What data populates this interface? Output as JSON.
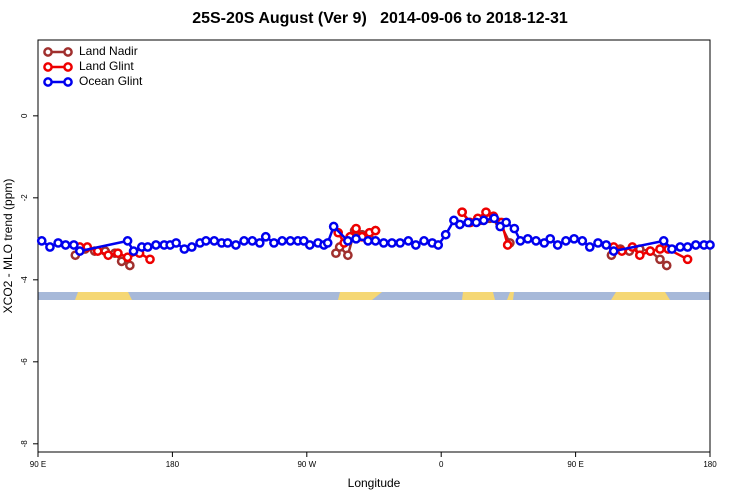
{
  "chart_data": {
    "type": "line",
    "title": "25S-20S August (Ver 9)   2014-09-06 to 2018-12-31",
    "xlabel": "Longitude",
    "ylabel": "XCO2 - MLO trend (ppm)",
    "xlim": [
      90,
      540
    ],
    "ylim": [
      -8.2,
      1.85
    ],
    "xticks": [
      {
        "value": 90,
        "label": "90 E"
      },
      {
        "value": 180,
        "label": "180"
      },
      {
        "value": 270,
        "label": "90 W"
      },
      {
        "value": 360,
        "label": "0"
      },
      {
        "value": 450,
        "label": "90 E"
      },
      {
        "value": 540,
        "label": "180"
      }
    ],
    "yticks": [
      0,
      -2,
      -4,
      -6,
      -8
    ],
    "legend": "top-left",
    "series": [
      {
        "name": "Land Nadir",
        "color": "#a0302e",
        "x": [
          115,
          121.5,
          128,
          135,
          141.5,
          146,
          151.5,
          220,
          289.5,
          292,
          297.5,
          302,
          307,
          312,
          316,
          345,
          374,
          379,
          386,
          392.5,
          399,
          406,
          440,
          474,
          480,
          486,
          493,
          500,
          506.5,
          511
        ],
        "values": [
          -3.4,
          -3.25,
          -3.3,
          -3.3,
          -3.35,
          -3.55,
          -3.65,
          null,
          -3.35,
          -3.2,
          -3.4,
          -2.8,
          -2.9,
          -3.0,
          -2.8,
          null,
          -2.35,
          -2.6,
          -2.55,
          -2.5,
          -2.6,
          -3.1,
          null,
          -3.4,
          -3.25,
          -3.3,
          -3.25,
          -3.3,
          -3.5,
          -3.65
        ]
      },
      {
        "name": "Land Glint",
        "color": "#ee0000",
        "x": [
          118,
          123,
          130,
          137,
          143.5,
          150,
          158,
          165,
          220,
          291,
          295,
          299,
          303,
          307,
          312,
          316,
          345,
          374,
          379.5,
          384.5,
          390,
          395,
          400.5,
          404.5,
          440,
          475.5,
          481,
          488,
          493,
          500,
          506.5,
          512,
          525
        ],
        "values": [
          -3.2,
          -3.2,
          -3.3,
          -3.4,
          -3.35,
          -3.45,
          -3.35,
          -3.5,
          null,
          -2.85,
          -3.1,
          -2.95,
          -2.75,
          -2.95,
          -2.85,
          -2.8,
          null,
          -2.35,
          -2.6,
          -2.5,
          -2.35,
          -2.45,
          -2.6,
          -3.15,
          null,
          -3.2,
          -3.3,
          -3.2,
          -3.4,
          -3.3,
          -3.25,
          -3.25,
          -3.5
        ]
      },
      {
        "name": "Ocean Glint",
        "color": "#0000ee",
        "x": [
          92.5,
          98,
          103.5,
          108.5,
          114,
          118,
          150,
          154,
          159.5,
          163.5,
          169,
          174.5,
          178.5,
          182.5,
          188,
          193,
          198.5,
          202.5,
          208,
          213,
          217,
          222.5,
          228,
          233.5,
          238.5,
          242.5,
          248,
          253.5,
          259,
          264,
          268,
          272,
          277.5,
          281.5,
          284,
          288,
          297.5,
          303,
          311,
          316,
          321.5,
          327,
          332.5,
          338,
          343,
          348.5,
          354,
          358,
          363,
          368.5,
          372.5,
          378,
          383.5,
          388.5,
          395.5,
          399.5,
          403.5,
          409,
          413,
          418,
          423.5,
          429,
          433,
          438,
          443.5,
          449,
          454.5,
          459.5,
          465,
          470.5,
          475.5,
          509,
          514.5,
          520,
          525,
          530.5,
          536,
          540
        ],
        "values": [
          -3.05,
          -3.2,
          -3.1,
          -3.15,
          -3.15,
          -3.3,
          -3.05,
          -3.3,
          -3.2,
          -3.2,
          -3.15,
          -3.15,
          -3.15,
          -3.1,
          -3.25,
          -3.2,
          -3.1,
          -3.05,
          -3.05,
          -3.1,
          -3.1,
          -3.15,
          -3.05,
          -3.05,
          -3.1,
          -2.95,
          -3.1,
          -3.05,
          -3.05,
          -3.05,
          -3.05,
          -3.15,
          -3.1,
          -3.15,
          -3.1,
          -2.7,
          -3.05,
          -3.0,
          -3.05,
          -3.05,
          -3.1,
          -3.1,
          -3.1,
          -3.05,
          -3.15,
          -3.05,
          -3.1,
          -3.15,
          -2.9,
          -2.55,
          -2.65,
          -2.6,
          -2.6,
          -2.55,
          -2.5,
          -2.7,
          -2.6,
          -2.75,
          -3.05,
          -3.0,
          -3.05,
          -3.1,
          -3.0,
          -3.15,
          -3.05,
          -3.0,
          -3.05,
          -3.2,
          -3.1,
          -3.15,
          -3.3,
          -3.05,
          -3.25,
          -3.2,
          -3.2,
          -3.15,
          -3.15,
          -3.15
        ]
      }
    ]
  }
}
